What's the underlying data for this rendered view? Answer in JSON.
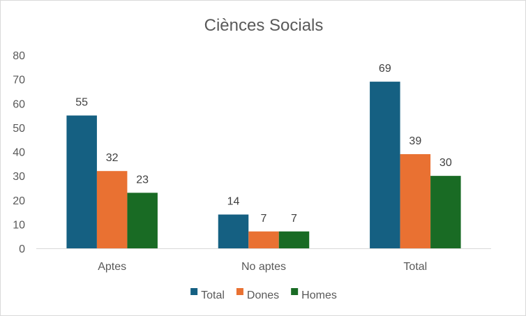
{
  "chart_data": {
    "type": "bar",
    "title": "Ciènces Socials",
    "xlabel": "",
    "ylabel": "",
    "categories": [
      "Aptes",
      "No aptes",
      "Total"
    ],
    "series": [
      {
        "name": "Total",
        "values": [
          55,
          14,
          69
        ],
        "color": "#156082"
      },
      {
        "name": "Dones",
        "values": [
          32,
          7,
          39
        ],
        "color": "#e97132"
      },
      {
        "name": "Homes",
        "values": [
          23,
          7,
          30
        ],
        "color": "#196b24"
      }
    ],
    "ylim": [
      0,
      80
    ],
    "yticks": [
      0,
      10,
      20,
      30,
      40,
      50,
      60,
      70,
      80
    ],
    "grid": false,
    "data_labels": true,
    "legend_position": "bottom"
  }
}
